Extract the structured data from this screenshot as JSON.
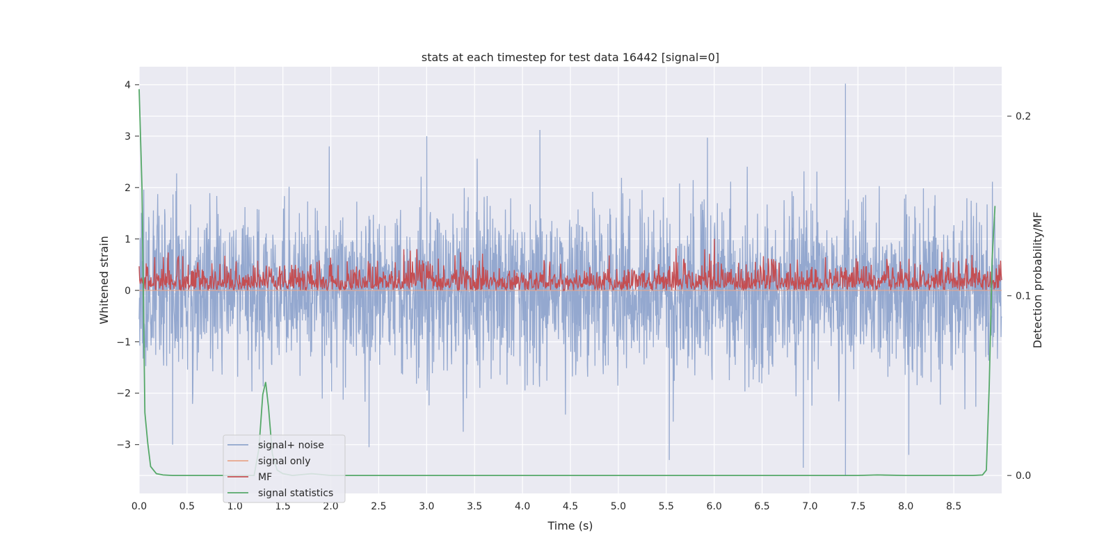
{
  "chart_data": {
    "type": "line",
    "title": "stats at each timestep for test data 16442 [signal=0]",
    "xlabel": "Time (s)",
    "ylabel": "Whitened strain",
    "y2label": "Detection probability/MF",
    "xlim": [
      0.0,
      9.0
    ],
    "ylim": [
      -3.95,
      4.35
    ],
    "y2lim": [
      -0.01,
      0.2275
    ],
    "xticks": [
      "0.0",
      "0.5",
      "1.0",
      "1.5",
      "2.0",
      "2.5",
      "3.0",
      "3.5",
      "4.0",
      "4.5",
      "5.0",
      "5.5",
      "6.0",
      "6.5",
      "7.0",
      "7.5",
      "8.0",
      "8.5"
    ],
    "yticks": [
      "4",
      "3",
      "2",
      "1",
      "0",
      "−1",
      "−2",
      "−3"
    ],
    "y2ticks": [
      "0.2",
      "0.1",
      "0.0"
    ],
    "grid": true,
    "legend_position": "lower-left",
    "series": [
      {
        "name": "signal+ noise",
        "color": "#8fa4cc",
        "axis": "left",
        "kind": "noise",
        "amplitude_envelope": [
          -2.6,
          2.6
        ],
        "peaks": [
          {
            "x": 7.37,
            "y": 4.02
          },
          {
            "x": 4.18,
            "y": 3.12
          },
          {
            "x": 3.0,
            "y": 3.0
          },
          {
            "x": 5.93,
            "y": 2.97
          },
          {
            "x": 7.37,
            "y": -3.6
          },
          {
            "x": 6.93,
            "y": -3.45
          },
          {
            "x": 5.53,
            "y": -3.3
          },
          {
            "x": 8.03,
            "y": -3.2
          },
          {
            "x": 2.4,
            "y": -3.05
          },
          {
            "x": 0.35,
            "y": -3.0
          }
        ]
      },
      {
        "name": "signal only",
        "color": "#e8a58a",
        "axis": "left",
        "kind": "flat",
        "value": 0.0
      },
      {
        "name": "MF",
        "color": "#c44e52",
        "axis": "left",
        "kind": "band",
        "band": [
          0.0,
          0.55
        ],
        "peaks": [
          {
            "x": 6.0,
            "y": 1.0
          },
          {
            "x": 5.6,
            "y": 0.82
          }
        ]
      },
      {
        "name": "signal statistics",
        "color": "#55a868",
        "axis": "right",
        "kind": "line",
        "x": [
          0.0,
          0.03,
          0.06,
          0.09,
          0.12,
          0.18,
          0.25,
          0.35,
          0.5,
          1.0,
          1.2,
          1.25,
          1.29,
          1.32,
          1.35,
          1.39,
          1.44,
          1.5,
          1.6,
          1.8,
          2.0,
          3.0,
          4.0,
          5.0,
          5.5,
          6.0,
          6.5,
          7.0,
          7.5,
          7.7,
          8.0,
          8.5,
          8.7,
          8.8,
          8.84,
          8.87,
          8.9,
          8.93
        ],
        "y": [
          0.215,
          0.16,
          0.035,
          0.018,
          0.005,
          0.001,
          0.0003,
          0.0,
          0.0,
          0.0,
          0.0,
          0.015,
          0.045,
          0.052,
          0.038,
          0.012,
          0.003,
          0.001,
          0.0,
          0.001,
          0.0,
          0.0,
          0.0,
          0.0,
          0.0,
          0.0,
          0.0,
          0.0,
          0.0,
          0.0003,
          0.0,
          0.0,
          0.0,
          0.0003,
          0.003,
          0.05,
          0.12,
          0.15
        ]
      }
    ]
  }
}
